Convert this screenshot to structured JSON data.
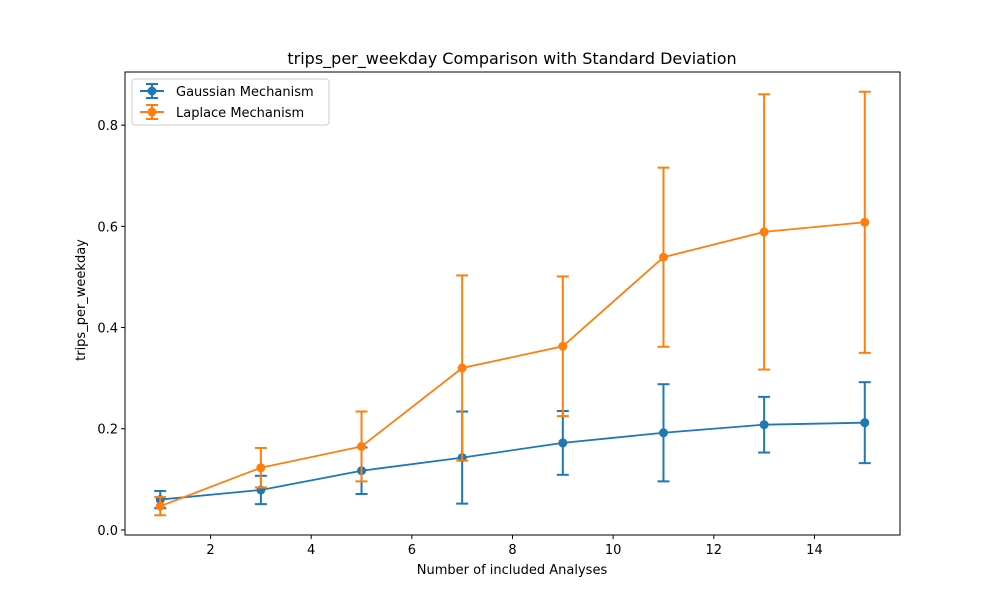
{
  "chart_data": {
    "type": "line",
    "title": "trips_per_weekday Comparison with Standard Deviation",
    "xlabel": "Number of included Analyses",
    "ylabel": "trips_per_weekday",
    "xlim": [
      0.3,
      15.7
    ],
    "ylim": [
      -0.01,
      0.905
    ],
    "x_ticks": [
      2,
      4,
      6,
      8,
      10,
      12,
      14
    ],
    "y_ticks": [
      0.0,
      0.2,
      0.4,
      0.6,
      0.8
    ],
    "grid": false,
    "legend_position": "top-left",
    "x": [
      1,
      3,
      5,
      7,
      9,
      11,
      13,
      15
    ],
    "series": [
      {
        "name": "Gaussian Mechanism",
        "color": "#1f77b4",
        "values": [
          0.06,
          0.079,
          0.117,
          0.143,
          0.172,
          0.192,
          0.208,
          0.212
        ],
        "error": [
          0.017,
          0.028,
          0.046,
          0.091,
          0.063,
          0.096,
          0.055,
          0.08
        ]
      },
      {
        "name": "Laplace Mechanism",
        "color": "#ff7f0e",
        "values": [
          0.047,
          0.123,
          0.165,
          0.32,
          0.363,
          0.539,
          0.589,
          0.608
        ],
        "error": [
          0.018,
          0.039,
          0.069,
          0.183,
          0.138,
          0.177,
          0.272,
          0.258
        ]
      }
    ]
  }
}
